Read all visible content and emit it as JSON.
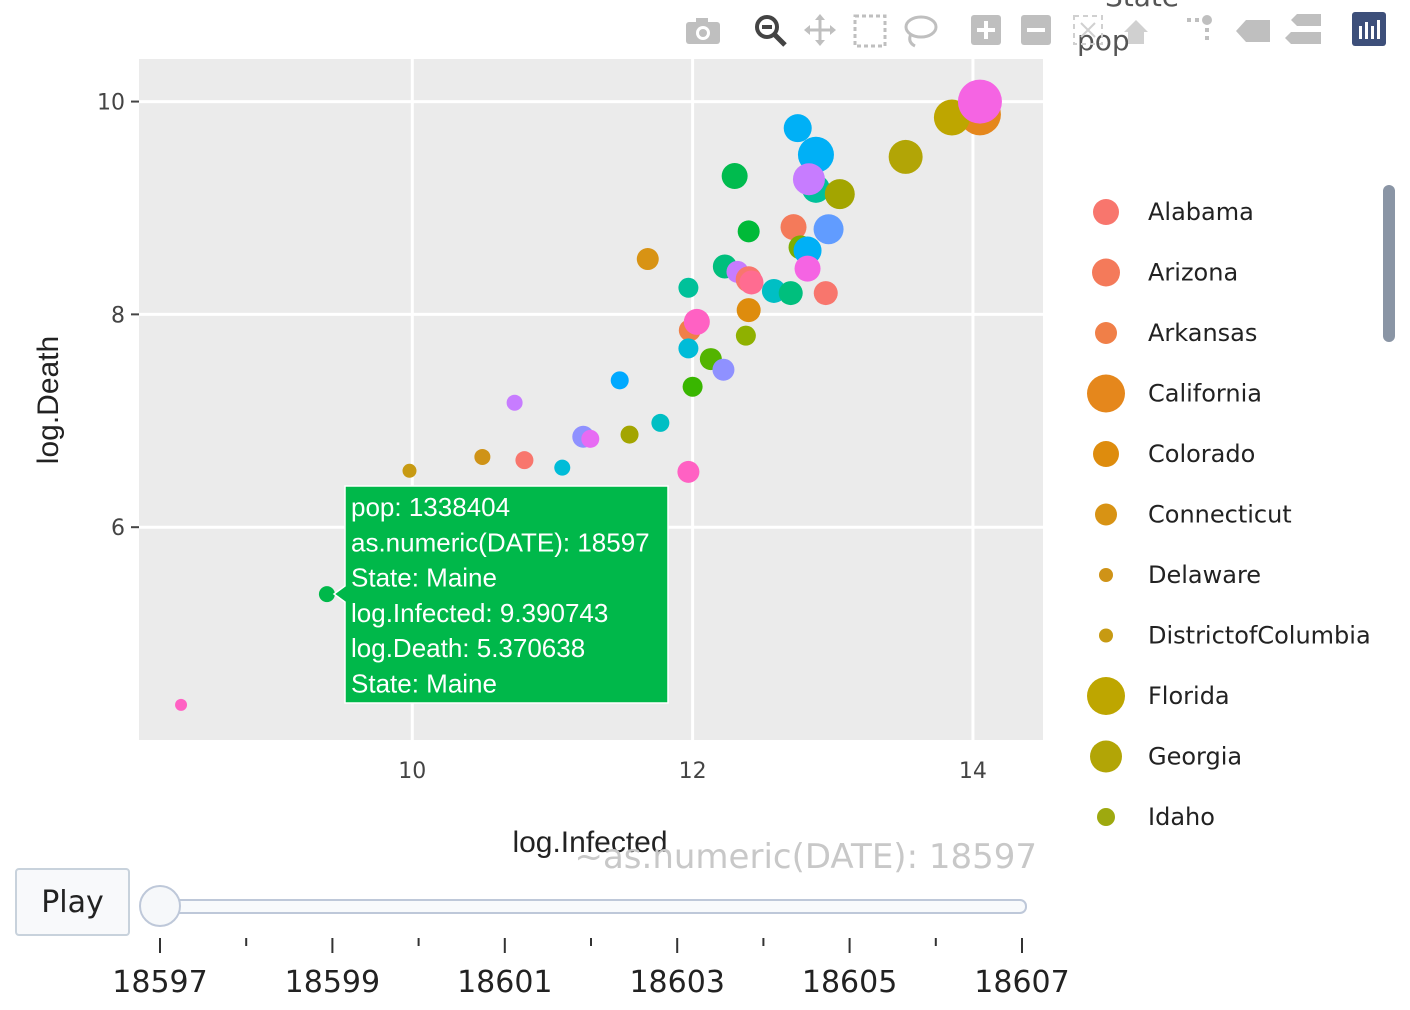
{
  "toolbar": {
    "legend_title_text": "pop",
    "overlay_title_text": "State",
    "icons": [
      "camera-icon",
      "zoom-icon",
      "pan-icon",
      "box-select-icon",
      "lasso-icon",
      "zoom-in-icon",
      "zoom-out-icon",
      "autoscale-icon",
      "reset-axes-icon",
      "spike-lines-icon",
      "hover-closest-icon",
      "hover-compare-icon",
      "plotly-logo-icon"
    ]
  },
  "play_label": "Play",
  "slider": {
    "current_label": "~as.numeric(DATE): 18597",
    "ticks": [
      "18597",
      "18599",
      "18601",
      "18603",
      "18605",
      "18607"
    ],
    "min": 18597,
    "max": 18607,
    "value": 18597
  },
  "hover": {
    "lines": [
      "pop: 1338404",
      "as.numeric(DATE): 18597",
      "State: Maine",
      "log.Infected: 9.390743",
      "log.Death: 5.370638",
      "State: Maine"
    ],
    "color": "#00b84a"
  },
  "chart_data": {
    "type": "scatter",
    "xlabel": "log.Infected",
    "ylabel": "log.Death",
    "xlim": [
      8.05,
      14.5
    ],
    "ylim": [
      4.0,
      10.4
    ],
    "xticks": [
      10,
      12,
      14
    ],
    "yticks": [
      6,
      8,
      10
    ],
    "grid": true,
    "legend_position": "right",
    "legend": [
      {
        "name": "Alabama",
        "color": "#f8766d",
        "size": 13
      },
      {
        "name": "Arizona",
        "color": "#f47a5a",
        "size": 14
      },
      {
        "name": "Arkansas",
        "color": "#f07f48",
        "size": 11
      },
      {
        "name": "California",
        "color": "#e5871c",
        "size": 19
      },
      {
        "name": "Colorado",
        "color": "#de8c0d",
        "size": 13
      },
      {
        "name": "Connecticut",
        "color": "#d89314",
        "size": 11
      },
      {
        "name": "Delaware",
        "color": "#cf9317",
        "size": 7
      },
      {
        "name": "DistrictofColumbia",
        "color": "#c79a12",
        "size": 7
      },
      {
        "name": "Florida",
        "color": "#bea600",
        "size": 19
      },
      {
        "name": "Georgia",
        "color": "#b2a506",
        "size": 16
      },
      {
        "name": "Idaho",
        "color": "#9ea90f",
        "size": 9
      }
    ],
    "points": [
      {
        "x": 14.05,
        "y": 9.88,
        "r": 21,
        "color": "#e5871c"
      },
      {
        "x": 13.85,
        "y": 9.85,
        "r": 18,
        "color": "#bea600"
      },
      {
        "x": 14.05,
        "y": 10.0,
        "r": 22,
        "color": "#f564e3"
      },
      {
        "x": 13.52,
        "y": 9.48,
        "r": 17,
        "color": "#b2a506"
      },
      {
        "x": 12.75,
        "y": 9.75,
        "r": 14,
        "color": "#00b0f6"
      },
      {
        "x": 12.88,
        "y": 9.5,
        "r": 18,
        "color": "#00b0f6"
      },
      {
        "x": 12.88,
        "y": 9.18,
        "r": 14,
        "color": "#00c19a"
      },
      {
        "x": 13.05,
        "y": 9.13,
        "r": 15,
        "color": "#a3a500"
      },
      {
        "x": 12.83,
        "y": 9.27,
        "r": 16,
        "color": "#c77cff"
      },
      {
        "x": 12.3,
        "y": 9.3,
        "r": 13,
        "color": "#00bb4e"
      },
      {
        "x": 12.72,
        "y": 8.82,
        "r": 13,
        "color": "#f47a5a"
      },
      {
        "x": 12.4,
        "y": 8.78,
        "r": 11,
        "color": "#00ba38"
      },
      {
        "x": 12.97,
        "y": 8.8,
        "r": 15,
        "color": "#619cff"
      },
      {
        "x": 12.77,
        "y": 8.63,
        "r": 12,
        "color": "#7cae00"
      },
      {
        "x": 12.82,
        "y": 8.6,
        "r": 14,
        "color": "#00b0f6"
      },
      {
        "x": 12.82,
        "y": 8.43,
        "r": 13,
        "color": "#f564e3"
      },
      {
        "x": 12.23,
        "y": 8.45,
        "r": 12,
        "color": "#00bf7d"
      },
      {
        "x": 12.32,
        "y": 8.4,
        "r": 11,
        "color": "#c77cff"
      },
      {
        "x": 12.4,
        "y": 8.33,
        "r": 13,
        "color": "#f8766d"
      },
      {
        "x": 12.42,
        "y": 8.3,
        "r": 12,
        "color": "#ff6c91"
      },
      {
        "x": 12.58,
        "y": 8.22,
        "r": 12,
        "color": "#00bfc4"
      },
      {
        "x": 12.7,
        "y": 8.2,
        "r": 12,
        "color": "#00bf7d"
      },
      {
        "x": 12.95,
        "y": 8.2,
        "r": 12,
        "color": "#f8766d"
      },
      {
        "x": 12.4,
        "y": 8.04,
        "r": 12,
        "color": "#de8c0d"
      },
      {
        "x": 11.68,
        "y": 8.52,
        "r": 11,
        "color": "#d89314"
      },
      {
        "x": 11.97,
        "y": 8.25,
        "r": 10,
        "color": "#00c19a"
      },
      {
        "x": 11.98,
        "y": 7.85,
        "r": 11,
        "color": "#f07f48"
      },
      {
        "x": 12.03,
        "y": 7.93,
        "r": 13,
        "color": "#ff61c3"
      },
      {
        "x": 11.97,
        "y": 7.68,
        "r": 10,
        "color": "#00bcd8"
      },
      {
        "x": 12.13,
        "y": 7.58,
        "r": 11,
        "color": "#53b400"
      },
      {
        "x": 12.22,
        "y": 7.48,
        "r": 11,
        "color": "#8f91ff"
      },
      {
        "x": 12.38,
        "y": 7.8,
        "r": 10,
        "color": "#8fb100"
      },
      {
        "x": 12.0,
        "y": 7.32,
        "r": 10,
        "color": "#39b600"
      },
      {
        "x": 11.48,
        "y": 7.38,
        "r": 9,
        "color": "#00a9ff"
      },
      {
        "x": 10.73,
        "y": 7.17,
        "r": 8,
        "color": "#c77cff"
      },
      {
        "x": 11.22,
        "y": 6.85,
        "r": 11,
        "color": "#8f91ff"
      },
      {
        "x": 11.27,
        "y": 6.83,
        "r": 9,
        "color": "#e76bf3"
      },
      {
        "x": 11.55,
        "y": 6.87,
        "r": 9,
        "color": "#a3a500"
      },
      {
        "x": 11.77,
        "y": 6.98,
        "r": 9,
        "color": "#00bfc4"
      },
      {
        "x": 10.5,
        "y": 6.66,
        "r": 8,
        "color": "#cf9317"
      },
      {
        "x": 10.8,
        "y": 6.63,
        "r": 9,
        "color": "#f8766d"
      },
      {
        "x": 11.07,
        "y": 6.56,
        "r": 8,
        "color": "#00bcd8"
      },
      {
        "x": 9.98,
        "y": 6.53,
        "r": 7,
        "color": "#c79a12"
      },
      {
        "x": 11.97,
        "y": 6.52,
        "r": 11,
        "color": "#ff61c3"
      },
      {
        "x": 9.390743,
        "y": 5.370638,
        "r": 8,
        "color": "#00b84a"
      },
      {
        "x": 8.35,
        "y": 4.33,
        "r": 6,
        "color": "#ff61c3"
      }
    ]
  }
}
